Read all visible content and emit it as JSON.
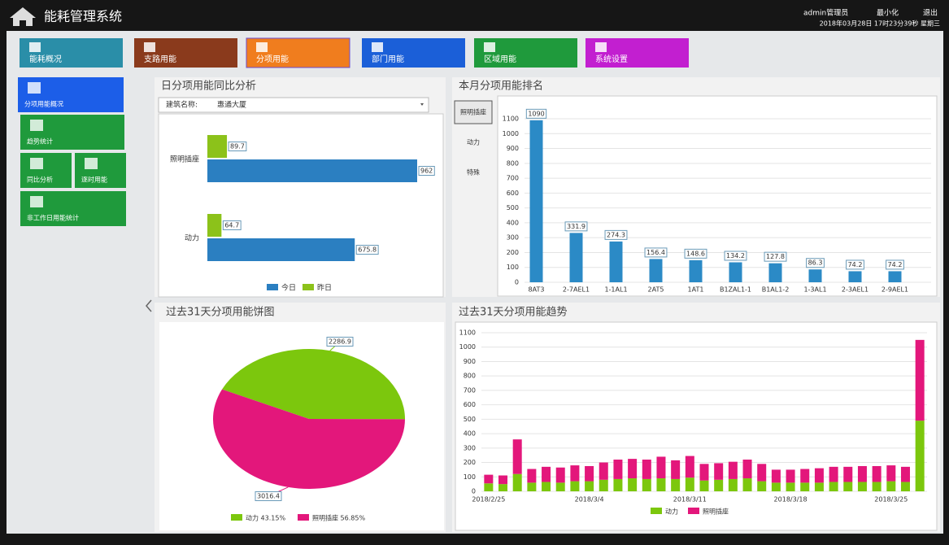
{
  "header": {
    "title": "能耗管理系统",
    "user": "admin管理员",
    "minimize": "最小化",
    "logout": "退出",
    "datetime": "2018年03月28日 17时23分39秒 星期三"
  },
  "nav": [
    "能耗概况",
    "支路用能",
    "分项用能",
    "部门用能",
    "区域用能",
    "系统设置"
  ],
  "menu": [
    "分项用能概况",
    "趋势统计",
    "同比分析",
    "逐时用能",
    "非工作日用能统计"
  ],
  "chart_data": [
    {
      "type": "hbar",
      "title": "日分项用能同比分析",
      "filter_label": "建筑名称:",
      "filter_value": "惠通大厦",
      "categories": [
        "照明插座",
        "动力"
      ],
      "series": [
        {
          "name": "今日",
          "color": "#2b7fc1",
          "values": [
            962,
            675.8
          ]
        },
        {
          "name": "昨日",
          "color": "#8cc21a",
          "values": [
            89.7,
            64.7
          ]
        }
      ]
    },
    {
      "type": "bar",
      "title": "本月分项用能排名",
      "buttons": [
        "照明插座",
        "动力",
        "特殊"
      ],
      "categories": [
        "8AT3",
        "2-7AEL1",
        "1-1AL1",
        "2AT5",
        "1AT1",
        "B1ZAL1-1",
        "B1AL1-2",
        "1-3AL1",
        "2-3AEL1",
        "2-9AEL1"
      ],
      "values": [
        1090,
        331.9,
        274.3,
        156.4,
        148.6,
        134.2,
        127.8,
        86.3,
        74.2,
        74.2
      ],
      "color": "#2b8ac6",
      "ylim": [
        0,
        1100
      ],
      "yticks": [
        0,
        100,
        200,
        300,
        400,
        500,
        600,
        700,
        800,
        900,
        1000,
        1100
      ],
      "grid": true
    },
    {
      "type": "pie",
      "title": "过去31天分项用能饼图",
      "categories": [
        "动力",
        "照明插座"
      ],
      "values": [
        2286.9,
        3016.4
      ],
      "colors": [
        "#7cc70d",
        "#e3177b"
      ],
      "legend": [
        "动力 43.15%",
        "照明插座 56.85%"
      ]
    },
    {
      "type": "stacked_bar",
      "title": "过去31天分项用能趋势",
      "categories": [
        "2018/2/25",
        null,
        null,
        null,
        null,
        null,
        null,
        "2018/3/4",
        null,
        null,
        null,
        null,
        null,
        null,
        "2018/3/11",
        null,
        null,
        null,
        null,
        null,
        null,
        "2018/3/18",
        null,
        null,
        null,
        null,
        null,
        null,
        "2018/3/25",
        null,
        null
      ],
      "series": [
        {
          "name": "动力",
          "color": "#7cc70d",
          "values": [
            55,
            50,
            120,
            60,
            65,
            60,
            70,
            70,
            80,
            85,
            90,
            85,
            90,
            85,
            95,
            75,
            80,
            85,
            90,
            70,
            60,
            60,
            60,
            60,
            65,
            65,
            65,
            65,
            70,
            65,
            490
          ]
        },
        {
          "name": "照明插座",
          "color": "#e3177b",
          "values": [
            60,
            60,
            240,
            95,
            105,
            105,
            110,
            105,
            120,
            135,
            135,
            135,
            150,
            130,
            150,
            115,
            115,
            120,
            130,
            120,
            90,
            90,
            95,
            100,
            105,
            105,
            110,
            110,
            110,
            105,
            560
          ]
        }
      ],
      "ylim": [
        0,
        1100
      ],
      "yticks": [
        0,
        100,
        200,
        300,
        400,
        500,
        600,
        700,
        800,
        900,
        1000,
        1100
      ],
      "grid": true
    }
  ]
}
